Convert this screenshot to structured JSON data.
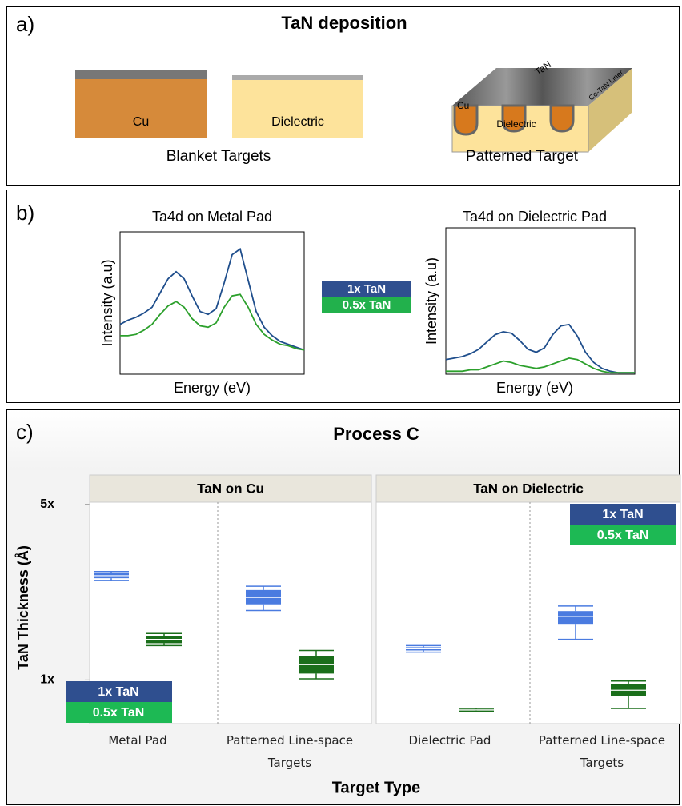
{
  "panel_labels": [
    "a)",
    "b)",
    "c)"
  ],
  "diagram": {
    "title": "TaN deposition",
    "blanket": {
      "labels": [
        "Cu",
        "Dielectric"
      ],
      "caption": "Blanket Targets"
    },
    "patterned": {
      "top": "TaN",
      "metal": "Cu",
      "base": "Dielectric",
      "liner": "Co-TaN Liner",
      "caption": "Patterned Target"
    }
  },
  "chart_data": [
    {
      "type": "line",
      "title": "Ta4d on Metal Pad",
      "x_label": "Energy (eV)",
      "y_label": "Intensity (a.u)",
      "x": [
        0,
        10,
        20,
        30,
        40,
        50,
        60,
        70,
        80,
        90,
        100,
        110,
        120,
        130,
        140,
        150,
        160,
        170,
        180,
        190,
        200,
        210,
        220,
        230
      ],
      "xlim": [
        0,
        230
      ],
      "ylim": [
        0,
        1
      ],
      "series": [
        {
          "name": "1x TaN",
          "color": "#1f4e8c",
          "values": [
            0.35,
            0.38,
            0.4,
            0.43,
            0.47,
            0.57,
            0.67,
            0.72,
            0.67,
            0.55,
            0.44,
            0.42,
            0.46,
            0.64,
            0.84,
            0.88,
            0.66,
            0.44,
            0.33,
            0.27,
            0.23,
            0.21,
            0.19,
            0.17
          ]
        },
        {
          "name": "0.5x TaN",
          "color": "#2ca02c",
          "values": [
            0.27,
            0.27,
            0.28,
            0.31,
            0.35,
            0.42,
            0.48,
            0.51,
            0.47,
            0.39,
            0.34,
            0.33,
            0.36,
            0.47,
            0.55,
            0.56,
            0.47,
            0.35,
            0.28,
            0.24,
            0.21,
            0.2,
            0.18,
            0.17
          ]
        }
      ]
    },
    {
      "type": "line",
      "title": "Ta4d on Dielectric Pad",
      "x_label": "Energy (eV)",
      "y_label": "Intensity (a.u)",
      "x": [
        0,
        10,
        20,
        30,
        40,
        50,
        60,
        70,
        80,
        90,
        100,
        110,
        120,
        130,
        140,
        150,
        160,
        170,
        180,
        190,
        200,
        210,
        220,
        230
      ],
      "xlim": [
        0,
        230
      ],
      "ylim": [
        0,
        1
      ],
      "series": [
        {
          "name": "1x TaN",
          "color": "#1f4e8c",
          "values": [
            0.1,
            0.11,
            0.12,
            0.14,
            0.17,
            0.22,
            0.27,
            0.29,
            0.28,
            0.23,
            0.17,
            0.15,
            0.18,
            0.27,
            0.33,
            0.34,
            0.26,
            0.15,
            0.08,
            0.04,
            0.02,
            0.01,
            0.01,
            0.01
          ]
        },
        {
          "name": "0.5x TaN",
          "color": "#2ca02c",
          "values": [
            0.02,
            0.02,
            0.02,
            0.03,
            0.03,
            0.05,
            0.07,
            0.09,
            0.08,
            0.06,
            0.05,
            0.04,
            0.05,
            0.07,
            0.09,
            0.11,
            0.1,
            0.07,
            0.04,
            0.02,
            0.01,
            0.01,
            0.01,
            0.01
          ]
        }
      ]
    },
    {
      "type": "box",
      "title": "Process C",
      "x_label": "Target Type",
      "y_label": "TaN Thickness (Å)",
      "log_scale": true,
      "ylim": [
        0.67,
        5.1
      ],
      "yticks": [
        {
          "value": 1,
          "label": "1x"
        },
        {
          "value": 5,
          "label": "5x"
        }
      ],
      "facets": [
        {
          "title": "TaN on Cu",
          "categories": [
            "Metal Pad",
            "Patterned Line-space Targets"
          ],
          "series": [
            {
              "name": "1x TaN",
              "color": "#4a7be0",
              "boxes": [
                {
                  "min": 2.49,
                  "q1": 2.54,
                  "median": 2.6,
                  "q3": 2.66,
                  "max": 2.7
                },
                {
                  "min": 1.89,
                  "q1": 2.0,
                  "median": 2.13,
                  "q3": 2.28,
                  "max": 2.36
                }
              ]
            },
            {
              "name": "0.5x TaN",
              "color": "#1a6e1a",
              "boxes": [
                {
                  "min": 1.37,
                  "q1": 1.4,
                  "median": 1.45,
                  "q3": 1.5,
                  "max": 1.53
                },
                {
                  "min": 1.01,
                  "q1": 1.06,
                  "median": 1.15,
                  "q3": 1.24,
                  "max": 1.31
                }
              ]
            }
          ]
        },
        {
          "title": "TaN on Dielectric",
          "categories": [
            "Dielectric Pad",
            "Patterned Line-space Targets"
          ],
          "series": [
            {
              "name": "1x TaN",
              "color": "#4a7be0",
              "boxes": [
                {
                  "min": 1.29,
                  "q1": 1.31,
                  "median": 1.33,
                  "q3": 1.35,
                  "max": 1.37
                },
                {
                  "min": 1.45,
                  "q1": 1.66,
                  "median": 1.79,
                  "q3": 1.88,
                  "max": 1.97
                }
              ]
            },
            {
              "name": "0.5x TaN",
              "color": "#1a6e1a",
              "boxes": [
                {
                  "min": 0.75,
                  "q1": 0.755,
                  "median": 0.76,
                  "q3": 0.765,
                  "max": 0.77
                },
                {
                  "min": 0.77,
                  "q1": 0.86,
                  "median": 0.91,
                  "q3": 0.96,
                  "max": 0.99
                }
              ]
            }
          ]
        }
      ]
    }
  ]
}
